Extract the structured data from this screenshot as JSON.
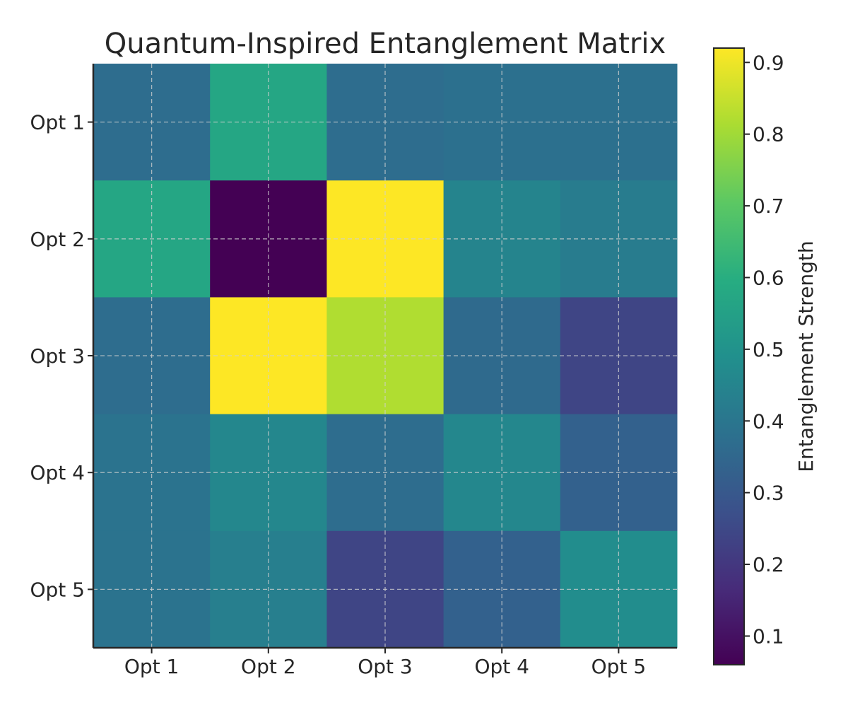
{
  "chart_data": {
    "type": "heatmap",
    "title": "Quantum-Inspired Entanglement Matrix",
    "x_categories": [
      "Opt 1",
      "Opt 2",
      "Opt 3",
      "Opt 4",
      "Opt 5"
    ],
    "y_categories": [
      "Opt 1",
      "Opt 2",
      "Opt 3",
      "Opt 4",
      "Opt 5"
    ],
    "values": [
      [
        0.37,
        0.57,
        0.37,
        0.38,
        0.38
      ],
      [
        0.57,
        0.06,
        0.92,
        0.45,
        0.42
      ],
      [
        0.37,
        0.92,
        0.82,
        0.36,
        0.24
      ],
      [
        0.39,
        0.46,
        0.37,
        0.46,
        0.33
      ],
      [
        0.39,
        0.43,
        0.24,
        0.33,
        0.48
      ]
    ],
    "colormap": "viridis",
    "vmin": 0.06,
    "vmax": 0.92,
    "colorbar": {
      "label": "Entanglement Strength",
      "ticks": [
        0.1,
        0.2,
        0.3,
        0.4,
        0.5,
        0.6,
        0.7,
        0.8,
        0.9
      ]
    },
    "grid": true,
    "grid_style": "dashed"
  }
}
